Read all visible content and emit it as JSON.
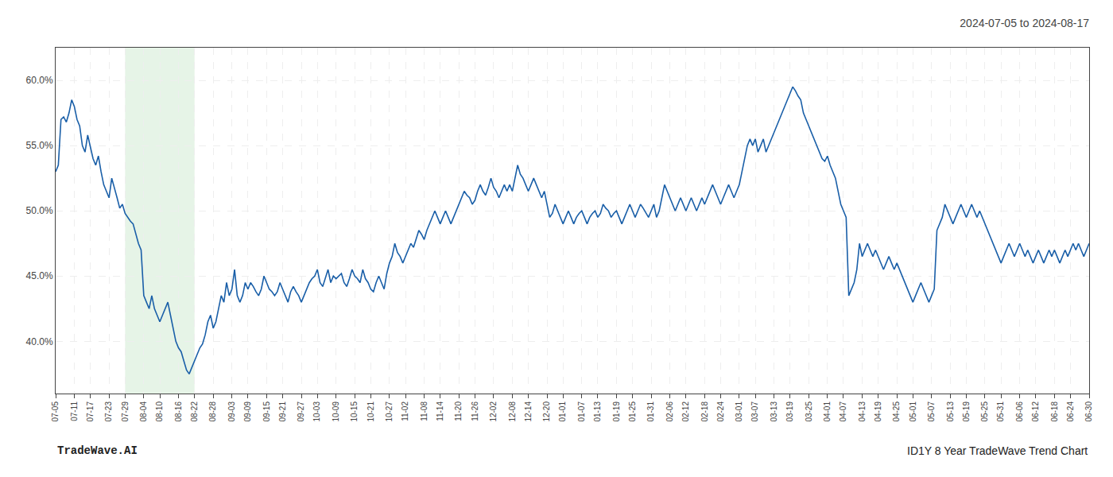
{
  "chart_data": {
    "type": "line",
    "title": "2024-07-05 to 2024-08-17",
    "annotations": [
      "TradeWave.AI",
      "ID1Y 8 Year TradeWave Trend Chart"
    ],
    "color": "#1a5fa8",
    "grid": true,
    "shaded_range": {
      "from": "07-29",
      "to": "08-22",
      "color": "#c8e6c9"
    },
    "ylim": [
      36.0,
      62.5
    ],
    "yticks": [
      {
        "value": 40.0,
        "label": "40.0%"
      },
      {
        "value": 45.0,
        "label": "45.0%"
      },
      {
        "value": 50.0,
        "label": "50.0%"
      },
      {
        "value": 55.0,
        "label": "55.0%"
      },
      {
        "value": 60.0,
        "label": "60.0%"
      }
    ],
    "categories": [
      "07-05",
      null,
      null,
      null,
      null,
      null,
      null,
      "07-11",
      null,
      null,
      null,
      null,
      null,
      "07-17",
      null,
      null,
      null,
      null,
      null,
      null,
      "07-23",
      null,
      null,
      null,
      null,
      null,
      "07-29",
      null,
      null,
      null,
      null,
      null,
      null,
      "08-04",
      null,
      null,
      null,
      null,
      null,
      "08-10",
      null,
      null,
      null,
      null,
      null,
      null,
      "08-16",
      null,
      null,
      null,
      null,
      null,
      "08-22",
      null,
      null,
      null,
      null,
      null,
      null,
      "08-28",
      null,
      null,
      null,
      null,
      null,
      null,
      "09-03",
      null,
      null,
      null,
      null,
      null,
      "09-09",
      null,
      null,
      null,
      null,
      null,
      null,
      "09-15",
      null,
      null,
      null,
      null,
      null,
      "09-21",
      null,
      null,
      null,
      null,
      null,
      null,
      "09-27",
      null,
      null,
      null,
      null,
      null,
      "10-03",
      null,
      null,
      null,
      null,
      null,
      null,
      "10-09",
      null,
      null,
      null,
      null,
      null,
      null,
      "10-15",
      null,
      null,
      null,
      null,
      null,
      "10-21",
      null,
      null,
      null,
      null,
      null,
      null,
      "10-27",
      null,
      null,
      null,
      null,
      null,
      "11-02",
      null,
      null,
      null,
      null,
      null,
      null,
      "11-08",
      null,
      null,
      null,
      null,
      null,
      "11-14",
      null,
      null,
      null,
      null,
      null,
      null,
      "11-20",
      null,
      null,
      null,
      null,
      null,
      "11-26",
      null,
      null,
      null,
      null,
      null,
      null,
      "12-02",
      null,
      null,
      null,
      null,
      null,
      null,
      "12-08",
      null,
      null,
      null,
      null,
      null,
      "12-14",
      null,
      null,
      null,
      null,
      null,
      null,
      "12-20",
      null,
      null,
      null,
      null,
      null,
      "01-01",
      null,
      null,
      null,
      null,
      null,
      null,
      "01-07",
      null,
      null,
      null,
      null,
      null,
      "01-13",
      null,
      null,
      null,
      null,
      null,
      null,
      "01-19",
      null,
      null,
      null,
      null,
      null,
      "01-25",
      null,
      null,
      null,
      null,
      null,
      null,
      "01-31",
      null,
      null,
      null,
      null,
      null,
      null,
      "02-06",
      null,
      null,
      null,
      null,
      null,
      "02-12",
      null,
      null,
      null,
      null,
      null,
      null,
      "02-18",
      null,
      null,
      null,
      null,
      null,
      "02-24",
      null,
      null,
      null,
      null,
      null,
      null,
      "03-01",
      null,
      null,
      null,
      null,
      null,
      "03-07",
      null,
      null,
      null,
      null,
      null,
      null,
      "03-13",
      null,
      null,
      null,
      null,
      null,
      "03-19",
      null,
      null,
      null,
      null,
      null,
      null,
      "03-25",
      null,
      null,
      null,
      null,
      null,
      null,
      "04-01",
      null,
      null,
      null,
      null,
      null,
      "04-07",
      null,
      null,
      null,
      null,
      null,
      null,
      "04-13",
      null,
      null,
      null,
      null,
      null,
      "04-19",
      null,
      null,
      null,
      null,
      null,
      null,
      "04-25",
      null,
      null,
      null,
      null,
      null,
      "05-01",
      null,
      null,
      null,
      null,
      null,
      null,
      "05-07",
      null,
      null,
      null,
      null,
      null,
      null,
      "05-13",
      null,
      null,
      null,
      null,
      null,
      "05-19",
      null,
      null,
      null,
      null,
      null,
      null,
      "05-25",
      null,
      null,
      null,
      null,
      null,
      "05-31",
      null,
      null,
      null,
      null,
      null,
      null,
      "06-06",
      null,
      null,
      null,
      null,
      null,
      "06-12",
      null,
      null,
      null,
      null,
      null,
      null,
      "06-18",
      null,
      null,
      null,
      null,
      null,
      "06-24",
      null,
      null,
      null,
      null,
      null,
      null,
      "06-30"
    ],
    "values": [
      53.0,
      53.5,
      57.0,
      57.2,
      56.8,
      57.5,
      58.5,
      58.0,
      57.0,
      56.5,
      55.0,
      54.5,
      55.8,
      54.8,
      54.0,
      53.5,
      54.2,
      53.0,
      52.0,
      51.5,
      51.0,
      52.5,
      51.8,
      51.0,
      50.2,
      50.5,
      49.8,
      49.5,
      49.2,
      49.0,
      48.2,
      47.5,
      47.0,
      43.5,
      43.0,
      42.5,
      43.5,
      42.5,
      42.0,
      41.5,
      42.0,
      42.5,
      43.0,
      42.0,
      41.0,
      40.0,
      39.5,
      39.2,
      38.5,
      37.8,
      37.5,
      38.0,
      38.5,
      39.0,
      39.5,
      39.8,
      40.5,
      41.5,
      42.0,
      41.0,
      41.5,
      42.5,
      43.5,
      43.0,
      44.5,
      43.5,
      44.0,
      45.5,
      43.5,
      43.0,
      43.5,
      44.5,
      44.0,
      44.5,
      44.2,
      43.8,
      43.5,
      44.0,
      45.0,
      44.5,
      44.0,
      43.8,
      43.5,
      43.8,
      44.5,
      44.0,
      43.5,
      43.0,
      43.8,
      44.2,
      43.8,
      43.5,
      43.0,
      43.5,
      44.0,
      44.5,
      44.8,
      45.0,
      45.5,
      44.5,
      44.2,
      44.8,
      45.5,
      44.5,
      45.0,
      44.8,
      45.0,
      45.2,
      44.5,
      44.2,
      44.8,
      45.5,
      45.0,
      44.8,
      44.5,
      45.5,
      44.8,
      44.5,
      44.0,
      43.8,
      44.5,
      45.0,
      44.5,
      44.0,
      45.2,
      46.0,
      46.5,
      47.5,
      46.8,
      46.5,
      46.0,
      46.5,
      47.0,
      47.5,
      47.2,
      47.8,
      48.5,
      48.2,
      47.8,
      48.5,
      49.0,
      49.5,
      50.0,
      49.5,
      49.0,
      49.5,
      50.0,
      49.5,
      49.0,
      49.5,
      50.0,
      50.5,
      51.0,
      51.5,
      51.2,
      51.0,
      50.5,
      50.8,
      51.5,
      52.0,
      51.5,
      51.2,
      51.8,
      52.5,
      51.8,
      51.5,
      51.0,
      51.5,
      52.0,
      51.5,
      52.0,
      51.5,
      52.5,
      53.5,
      52.8,
      52.5,
      52.0,
      51.5,
      52.0,
      52.5,
      52.0,
      51.5,
      51.0,
      51.5,
      50.5,
      49.5,
      49.8,
      50.5,
      50.0,
      49.5,
      49.0,
      49.5,
      50.0,
      49.5,
      49.0,
      49.5,
      49.8,
      50.0,
      49.5,
      49.0,
      49.5,
      49.8,
      50.0,
      49.5,
      49.8,
      50.5,
      50.2,
      50.0,
      49.5,
      49.8,
      50.0,
      49.5,
      49.0,
      49.5,
      50.0,
      50.5,
      50.0,
      49.5,
      50.0,
      50.5,
      50.2,
      49.8,
      49.5,
      50.0,
      50.5,
      49.5,
      50.0,
      51.0,
      52.0,
      51.5,
      51.0,
      50.5,
      50.0,
      50.5,
      51.0,
      50.5,
      50.0,
      50.5,
      51.0,
      50.5,
      50.0,
      50.5,
      51.0,
      50.5,
      51.0,
      51.5,
      52.0,
      51.5,
      51.0,
      50.5,
      51.0,
      51.5,
      52.0,
      51.5,
      51.0,
      51.5,
      52.0,
      53.0,
      54.0,
      55.0,
      55.5,
      55.0,
      55.5,
      54.5,
      55.0,
      55.5,
      54.5,
      55.0,
      55.5,
      56.0,
      56.5,
      57.0,
      57.5,
      58.0,
      58.5,
      59.0,
      59.5,
      59.2,
      58.8,
      58.5,
      57.5,
      57.0,
      56.5,
      56.0,
      55.5,
      55.0,
      54.5,
      54.0,
      53.8,
      54.2,
      53.5,
      53.0,
      52.5,
      51.5,
      50.5,
      50.0,
      49.5,
      43.5,
      44.0,
      44.5,
      45.5,
      47.5,
      46.5,
      47.0,
      47.5,
      47.0,
      46.5,
      47.0,
      46.5,
      46.0,
      45.5,
      46.0,
      46.5,
      46.0,
      45.5,
      46.0,
      45.5,
      45.0,
      44.5,
      44.0,
      43.5,
      43.0,
      43.5,
      44.0,
      44.5,
      44.0,
      43.5,
      43.0,
      43.5,
      44.0,
      48.5,
      49.0,
      49.5,
      50.5,
      50.0,
      49.5,
      49.0,
      49.5,
      50.0,
      50.5,
      50.0,
      49.5,
      50.0,
      50.5,
      50.0,
      49.5,
      50.0,
      49.5,
      49.0,
      48.5,
      48.0,
      47.5,
      47.0,
      46.5,
      46.0,
      46.5,
      47.0,
      47.5,
      47.0,
      46.5,
      47.0,
      47.5,
      47.0,
      46.5,
      47.0,
      46.5,
      46.0,
      46.5,
      47.0,
      46.5,
      46.0,
      46.5,
      47.0,
      46.5,
      47.0,
      46.5,
      46.0,
      46.5,
      47.0,
      46.5,
      47.0,
      47.5,
      47.0,
      47.5,
      47.0,
      46.5,
      47.0,
      47.5
    ]
  }
}
